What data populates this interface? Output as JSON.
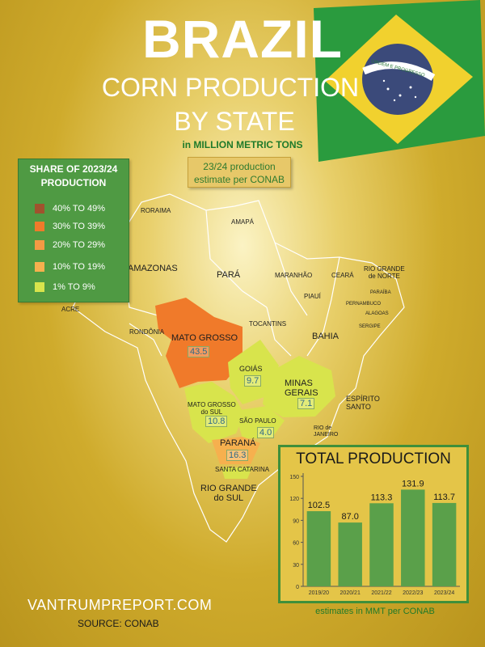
{
  "header": {
    "title": "BRAZIL",
    "subtitle_line1": "CORN PRODUCTION",
    "subtitle_line2": "BY STATE",
    "units": "in MILLION METRIC TONS",
    "estimate_note": [
      "23/24 production",
      "estimate per CONAB"
    ],
    "flag_motto": "ORDEM E PROGRESSO"
  },
  "legend": {
    "title": [
      "SHARE OF 2023/24",
      "PRODUCTION"
    ],
    "items": [
      {
        "label": "40% TO 49%",
        "color": "#a0522d"
      },
      {
        "label": "30% TO 39%",
        "color": "#f07a2a"
      },
      {
        "label": "20% TO 29%",
        "color": "#f49a44"
      },
      {
        "label": "10% TO 19%",
        "color": "#f6b04e"
      },
      {
        "label": "1% TO 9%",
        "color": "#d8e44c"
      }
    ]
  },
  "map": {
    "states": [
      {
        "name": "RORAIMA"
      },
      {
        "name": "AMAPÁ"
      },
      {
        "name": "AMAZONAS"
      },
      {
        "name": "PARÁ"
      },
      {
        "name": "MARANHÃO"
      },
      {
        "name": "CEARÁ"
      },
      {
        "name": [
          "RIO GRANDE",
          "de NORTE"
        ]
      },
      {
        "name": "PARAÍBA"
      },
      {
        "name": "PERNAMBUCO"
      },
      {
        "name": "ALAGOAS"
      },
      {
        "name": "SERGIPE"
      },
      {
        "name": "PIAUÍ"
      },
      {
        "name": "ACRE"
      },
      {
        "name": "RONDÔNIA"
      },
      {
        "name": "TOCANTINS"
      },
      {
        "name": "BAHIA"
      },
      {
        "name": "MATO GROSSO",
        "value": "43.5"
      },
      {
        "name": "GOIÁS",
        "value": "9.7"
      },
      {
        "name": [
          "MINAS",
          "GERAIS"
        ],
        "value": "7.1"
      },
      {
        "name": [
          "ESPÍRITO",
          "SANTO"
        ]
      },
      {
        "name": [
          "MATO GROSSO",
          "do SUL"
        ],
        "value": "10.8"
      },
      {
        "name": "SÃO PAULO",
        "value": "4.0"
      },
      {
        "name": [
          "RIO de",
          "JANEIRO"
        ]
      },
      {
        "name": "PARANÁ",
        "value": "16.3"
      },
      {
        "name": "SANTA CATARINA"
      },
      {
        "name": [
          "RIO GRANDE",
          "do SUL"
        ]
      }
    ]
  },
  "chart_data": {
    "type": "bar",
    "title": "TOTAL PRODUCTION",
    "categories": [
      "2019/20",
      "2020/21",
      "2021/22",
      "2022/23",
      "2023/24"
    ],
    "values": [
      102.5,
      87.0,
      113.3,
      131.9,
      113.7
    ],
    "value_labels": [
      "102.5",
      "87.0",
      "113.3",
      "131.9",
      "113.7"
    ],
    "yticks": [
      "0",
      "30",
      "60",
      "90",
      "120",
      "150"
    ],
    "ylim": [
      0,
      150
    ],
    "bar_color": "#5aa04a",
    "note": "estimates in MMT per CONAB"
  },
  "footer": {
    "site": "VANTRUMPREPORT.COM",
    "source": "SOURCE: CONAB"
  }
}
